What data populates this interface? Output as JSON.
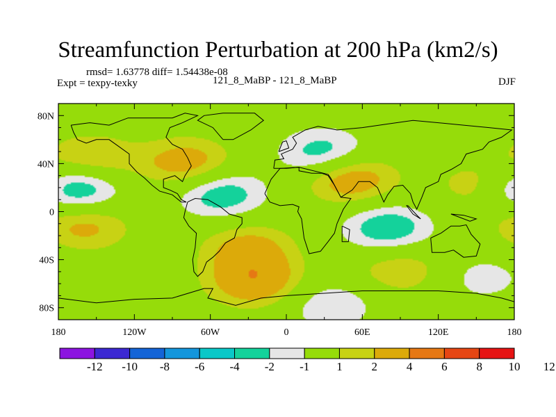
{
  "chart_data": {
    "type": "heatmap",
    "title": "Streamfunction Perturbation at 200 hPa (km2/s)",
    "subtitle_stats": "rmsd= 1.63778 diff= 1.54438e-08",
    "experiment_label": "Expt = texpy-texky",
    "center_label": "121_8_MaBP - 121_8_MaBP",
    "season": "DJF",
    "xlabel": "",
    "ylabel": "",
    "xlim": [
      -180,
      180
    ],
    "ylim": [
      -90,
      90
    ],
    "x_ticks": [
      {
        "value": -180,
        "label": "180"
      },
      {
        "value": -120,
        "label": "120W"
      },
      {
        "value": -60,
        "label": "60W"
      },
      {
        "value": 0,
        "label": "0"
      },
      {
        "value": 60,
        "label": "60E"
      },
      {
        "value": 120,
        "label": "120E"
      },
      {
        "value": 180,
        "label": "180"
      }
    ],
    "y_ticks": [
      {
        "value": 80,
        "label": "80N"
      },
      {
        "value": 40,
        "label": "40N"
      },
      {
        "value": 0,
        "label": "0"
      },
      {
        "value": -40,
        "label": "40S"
      },
      {
        "value": -80,
        "label": "80S"
      }
    ],
    "colorbar": {
      "colors": [
        "#8c14e0",
        "#3c28d2",
        "#1464d7",
        "#1496dc",
        "#0ac8c8",
        "#14d29b",
        "#e6e6e6",
        "#96dc0a",
        "#c8d214",
        "#dcaa0a",
        "#e67814",
        "#e64614",
        "#e61414"
      ],
      "tick_labels": [
        "-12",
        "-10",
        "-8",
        "-6",
        "-4",
        "-2",
        "-1",
        "1",
        "2",
        "4",
        "6",
        "8",
        "10",
        "12"
      ]
    },
    "anomalies": [
      {
        "lon": -155,
        "lat": 43,
        "value": 2.5
      },
      {
        "lon": -78,
        "lat": 40,
        "value": 3
      },
      {
        "lon": 50,
        "lat": 28,
        "value": 3.5
      },
      {
        "lon": 30,
        "lat": 48,
        "value": -3
      },
      {
        "lon": 155,
        "lat": 22,
        "value": 2
      },
      {
        "lon": -168,
        "lat": 20,
        "value": -4
      },
      {
        "lon": -52,
        "lat": 15,
        "value": -3
      },
      {
        "lon": -160,
        "lat": -12,
        "value": 2.5
      },
      {
        "lon": 80,
        "lat": -14,
        "value": -3
      },
      {
        "lon": -30,
        "lat": -30,
        "value": 2.5
      },
      {
        "lon": -25,
        "lat": -58,
        "value": 3.5
      },
      {
        "lon": 35,
        "lat": -78,
        "value": -2
      },
      {
        "lon": 90,
        "lat": -48,
        "value": 2
      },
      {
        "lon": 155,
        "lat": -55,
        "value": -1.5
      }
    ],
    "land_outlines": [
      [
        [
          -170,
          72
        ],
        [
          -155,
          74
        ],
        [
          -140,
          72
        ],
        [
          -125,
          78
        ],
        [
          -90,
          78
        ],
        [
          -80,
          82
        ],
        [
          -70,
          80
        ],
        [
          -82,
          74
        ],
        [
          -92,
          70
        ],
        [
          -95,
          62
        ],
        [
          -90,
          56
        ],
        [
          -82,
          52
        ],
        [
          -78,
          45
        ],
        [
          -75,
          38
        ],
        [
          -80,
          30
        ],
        [
          -82,
          25
        ],
        [
          -88,
          30
        ],
        [
          -97,
          27
        ],
        [
          -97,
          20
        ],
        [
          -92,
          18
        ],
        [
          -86,
          15
        ],
        [
          -83,
          10
        ],
        [
          -79,
          8
        ],
        [
          -83,
          8
        ],
        [
          -90,
          14
        ],
        [
          -100,
          17
        ],
        [
          -106,
          22
        ],
        [
          -112,
          28
        ],
        [
          -118,
          33
        ],
        [
          -124,
          40
        ],
        [
          -124,
          48
        ],
        [
          -132,
          54
        ],
        [
          -140,
          60
        ],
        [
          -150,
          60
        ],
        [
          -158,
          57
        ],
        [
          -165,
          60
        ],
        [
          -168,
          66
        ],
        [
          -170,
          72
        ]
      ],
      [
        [
          -78,
          8
        ],
        [
          -72,
          11
        ],
        [
          -62,
          10
        ],
        [
          -52,
          4
        ],
        [
          -45,
          -2
        ],
        [
          -35,
          -5
        ],
        [
          -35,
          -10
        ],
        [
          -39,
          -15
        ],
        [
          -41,
          -22
        ],
        [
          -48,
          -26
        ],
        [
          -53,
          -33
        ],
        [
          -58,
          -38
        ],
        [
          -63,
          -42
        ],
        [
          -66,
          -50
        ],
        [
          -70,
          -54
        ],
        [
          -73,
          -50
        ],
        [
          -74,
          -40
        ],
        [
          -72,
          -30
        ],
        [
          -71,
          -18
        ],
        [
          -77,
          -12
        ],
        [
          -81,
          -5
        ],
        [
          -80,
          0
        ],
        [
          -78,
          8
        ]
      ],
      [
        [
          -50,
          60
        ],
        [
          -42,
          60
        ],
        [
          -28,
          68
        ],
        [
          -18,
          76
        ],
        [
          -25,
          82
        ],
        [
          -50,
          82
        ],
        [
          -65,
          80
        ],
        [
          -70,
          76
        ],
        [
          -58,
          70
        ],
        [
          -50,
          60
        ]
      ],
      [
        [
          -10,
          36
        ],
        [
          -9,
          43
        ],
        [
          -2,
          44
        ],
        [
          -4,
          48
        ],
        [
          5,
          52
        ],
        [
          8,
          57
        ],
        [
          5,
          62
        ],
        [
          15,
          68
        ],
        [
          25,
          71
        ],
        [
          40,
          68
        ],
        [
          60,
          70
        ],
        [
          80,
          73
        ],
        [
          100,
          76
        ],
        [
          120,
          74
        ],
        [
          140,
          72
        ],
        [
          160,
          70
        ],
        [
          178,
          68
        ],
        [
          170,
          62
        ],
        [
          160,
          58
        ],
        [
          155,
          52
        ],
        [
          142,
          48
        ],
        [
          138,
          40
        ],
        [
          130,
          35
        ],
        [
          122,
          31
        ],
        [
          120,
          25
        ],
        [
          110,
          20
        ],
        [
          107,
          12
        ],
        [
          103,
          2
        ],
        [
          100,
          8
        ],
        [
          98,
          15
        ],
        [
          92,
          22
        ],
        [
          85,
          21
        ],
        [
          80,
          14
        ],
        [
          77,
          8
        ],
        [
          72,
          20
        ],
        [
          66,
          25
        ],
        [
          57,
          25
        ],
        [
          55,
          22
        ],
        [
          52,
          18
        ],
        [
          43,
          12
        ],
        [
          38,
          22
        ],
        [
          33,
          30
        ],
        [
          28,
          32
        ],
        [
          20,
          32
        ],
        [
          10,
          34
        ],
        [
          10,
          37
        ],
        [
          0,
          36
        ],
        [
          -10,
          36
        ]
      ],
      [
        [
          -17,
          15
        ],
        [
          -12,
          27
        ],
        [
          -5,
          36
        ],
        [
          10,
          37
        ],
        [
          33,
          31
        ],
        [
          35,
          28
        ],
        [
          43,
          12
        ],
        [
          51,
          11
        ],
        [
          45,
          2
        ],
        [
          40,
          -10
        ],
        [
          38,
          -18
        ],
        [
          33,
          -25
        ],
        [
          27,
          -33
        ],
        [
          18,
          -35
        ],
        [
          14,
          -22
        ],
        [
          12,
          -6
        ],
        [
          9,
          0
        ],
        [
          10,
          4
        ],
        [
          5,
          6
        ],
        [
          -5,
          5
        ],
        [
          -13,
          8
        ],
        [
          -17,
          15
        ]
      ],
      [
        [
          114,
          -22
        ],
        [
          122,
          -18
        ],
        [
          130,
          -12
        ],
        [
          137,
          -12
        ],
        [
          142,
          -11
        ],
        [
          146,
          -19
        ],
        [
          153,
          -27
        ],
        [
          150,
          -37
        ],
        [
          140,
          -38
        ],
        [
          132,
          -32
        ],
        [
          125,
          -34
        ],
        [
          115,
          -34
        ],
        [
          114,
          -22
        ]
      ],
      [
        [
          -180,
          -72
        ],
        [
          -150,
          -76
        ],
        [
          -120,
          -73
        ],
        [
          -90,
          -72
        ],
        [
          -65,
          -64
        ],
        [
          -58,
          -64
        ],
        [
          -62,
          -72
        ],
        [
          -40,
          -78
        ],
        [
          -20,
          -72
        ],
        [
          0,
          -70
        ],
        [
          30,
          -68
        ],
        [
          60,
          -66
        ],
        [
          90,
          -66
        ],
        [
          120,
          -66
        ],
        [
          150,
          -68
        ],
        [
          170,
          -72
        ],
        [
          180,
          -75
        ],
        [
          180,
          -90
        ],
        [
          -180,
          -90
        ],
        [
          -180,
          -72
        ]
      ],
      [
        [
          96,
          5
        ],
        [
          104,
          -4
        ],
        [
          106,
          -6
        ],
        [
          100,
          -2
        ],
        [
          95,
          5
        ],
        [
          96,
          5
        ]
      ],
      [
        [
          130,
          -2
        ],
        [
          140,
          -3
        ],
        [
          150,
          -6
        ],
        [
          145,
          -8
        ],
        [
          135,
          -4
        ],
        [
          130,
          -2
        ]
      ],
      [
        [
          44,
          -12
        ],
        [
          50,
          -15
        ],
        [
          49,
          -25
        ],
        [
          44,
          -25
        ],
        [
          44,
          -12
        ]
      ],
      [
        [
          -6,
          50
        ],
        [
          -3,
          58
        ],
        [
          0,
          59
        ],
        [
          2,
          53
        ],
        [
          -6,
          50
        ]
      ]
    ]
  }
}
